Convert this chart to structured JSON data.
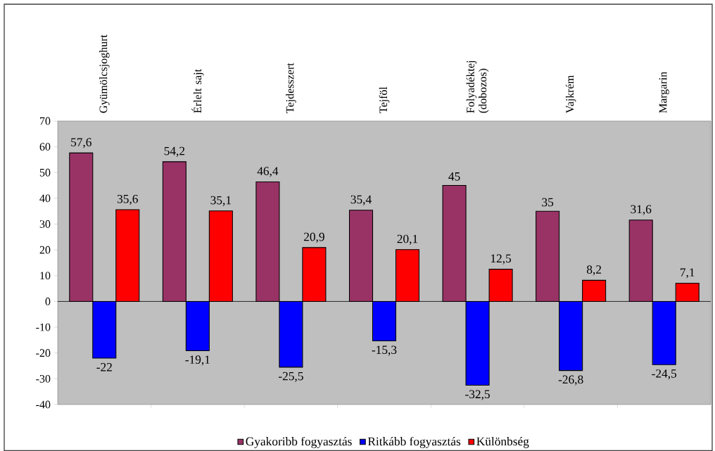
{
  "chart_data": {
    "type": "bar",
    "categories": [
      "Gyümölcsjoghurt",
      "Érlelt sajt",
      "Tejdesszert",
      "Tejföl",
      "Folyadéktej (dobozos)",
      "Vajkrém",
      "Margarin"
    ],
    "series": [
      {
        "name": "Gyakoribb fogyasztás",
        "color": "#993366",
        "values": [
          57.6,
          54.2,
          46.4,
          35.4,
          45,
          35,
          31.6
        ],
        "value_labels": [
          "57,6",
          "54,2",
          "46,4",
          "35,4",
          "45",
          "35",
          "31,6"
        ]
      },
      {
        "name": "Ritkább fogyasztás",
        "color": "#0000ff",
        "values": [
          -22,
          -19.1,
          -25.5,
          -15.3,
          -32.5,
          -26.8,
          -24.5
        ],
        "value_labels": [
          "-22",
          "-19,1",
          "-25,5",
          "-15,3",
          "-32,5",
          "-26,8",
          "-24,5"
        ]
      },
      {
        "name": "Különbség",
        "color": "#ff0000",
        "values": [
          35.6,
          35.1,
          20.9,
          20.1,
          12.5,
          8.2,
          7.1
        ],
        "value_labels": [
          "35,6",
          "35,1",
          "20,9",
          "20,1",
          "12,5",
          "8,2",
          "7,1"
        ]
      }
    ],
    "ylim": [
      -40,
      70
    ],
    "yticks": [
      -40,
      -30,
      -20,
      -10,
      0,
      10,
      20,
      30,
      40,
      50,
      60,
      70
    ],
    "legend": "bottom"
  }
}
